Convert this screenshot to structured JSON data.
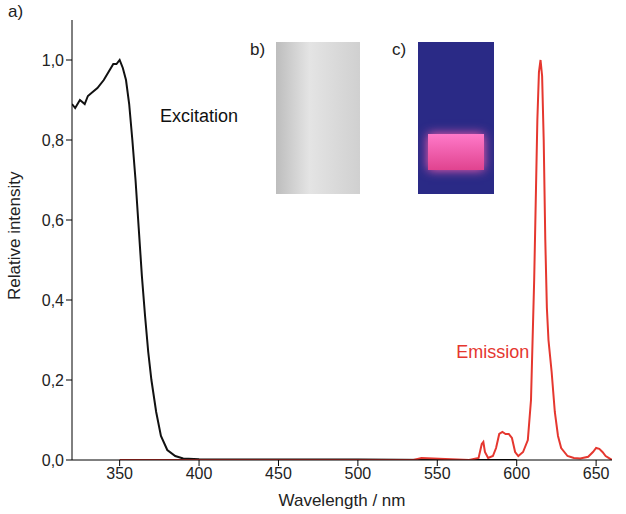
{
  "chart_data": {
    "type": "line",
    "panel_labels": [
      "a)",
      "b)",
      "c)"
    ],
    "x_label": "Wavelength / nm",
    "y_label": "Relative intensity",
    "xlim": [
      320,
      660
    ],
    "xticks": [
      350,
      400,
      450,
      500,
      550,
      600,
      650
    ],
    "ylim": [
      0,
      1.1
    ],
    "yticks": [
      {
        "value": 0,
        "label": "0,0"
      },
      {
        "value": 0.2,
        "label": "0,2"
      },
      {
        "value": 0.4,
        "label": "0,4"
      },
      {
        "value": 0.6,
        "label": "0,6"
      },
      {
        "value": 0.8,
        "label": "0,8"
      },
      {
        "value": 1.0,
        "label": "1,0"
      }
    ],
    "grid": false,
    "series": [
      {
        "name": "Excitation",
        "color": "#111111",
        "x": [
          320,
          322,
          325,
          328,
          330,
          333,
          336,
          340,
          343,
          346,
          348,
          350,
          352,
          354,
          356,
          358,
          360,
          362,
          364,
          366,
          368,
          370,
          373,
          376,
          380,
          385,
          390,
          400,
          450,
          500,
          550,
          600
        ],
        "values": [
          0.89,
          0.88,
          0.9,
          0.89,
          0.91,
          0.92,
          0.93,
          0.95,
          0.97,
          0.99,
          0.99,
          1.0,
          0.98,
          0.95,
          0.89,
          0.8,
          0.7,
          0.58,
          0.46,
          0.36,
          0.27,
          0.2,
          0.12,
          0.06,
          0.025,
          0.01,
          0.004,
          0.002,
          0.001,
          0.001,
          0.0,
          0.0
        ]
      },
      {
        "name": "Emission",
        "color": "#e5372f",
        "x": [
          350,
          400,
          450,
          500,
          535,
          540,
          570,
          576,
          578,
          579,
          580,
          582,
          585,
          587,
          589,
          591,
          593,
          595,
          597,
          599,
          601,
          604,
          607,
          609,
          611,
          613,
          614,
          615,
          616,
          617,
          618,
          619,
          620,
          622,
          624,
          626,
          628,
          632,
          636,
          640,
          645,
          648,
          650,
          652,
          654,
          656,
          660
        ],
        "values": [
          0.0,
          0.0,
          0.0,
          0.0,
          0.0,
          0.005,
          0.0,
          0.005,
          0.04,
          0.045,
          0.02,
          0.005,
          0.01,
          0.03,
          0.065,
          0.07,
          0.065,
          0.065,
          0.055,
          0.02,
          0.01,
          0.02,
          0.05,
          0.15,
          0.45,
          0.85,
          0.97,
          1.0,
          0.96,
          0.8,
          0.55,
          0.38,
          0.3,
          0.22,
          0.12,
          0.06,
          0.03,
          0.01,
          0.005,
          0.004,
          0.008,
          0.02,
          0.03,
          0.028,
          0.02,
          0.01,
          0.0
        ]
      }
    ],
    "annotations": [
      {
        "text": "Excitation",
        "x": 400,
        "y": 0.86,
        "color": "#111111"
      },
      {
        "text": "Emission",
        "x": 585,
        "y": 0.27,
        "color": "#e5372f"
      }
    ]
  }
}
